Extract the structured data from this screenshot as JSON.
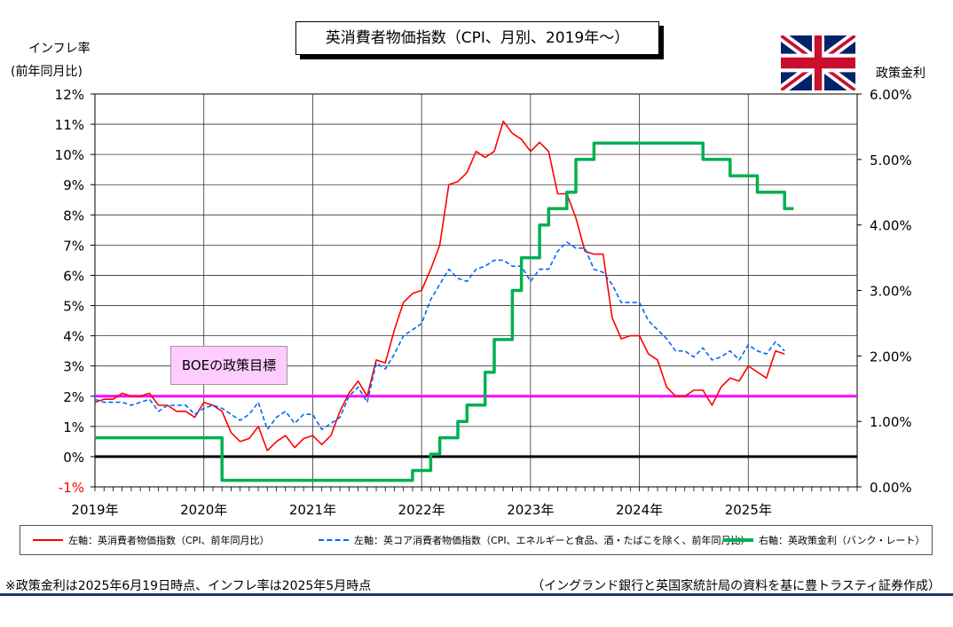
{
  "title": "英消費者物価指数（CPI、月別、2019年～）",
  "left_axis_title_1": "インフレ率",
  "left_axis_title_2": "(前年同月比)",
  "right_axis_title": "政策金利",
  "boe_label": "BOEの政策目標",
  "footnote_left": "※政策金利は2025年6月19日時点、インフレ率は2025年5月時点",
  "footnote_right": "（イングランド銀行と英国家統計局の資料を基に豊トラスティ証券作成）",
  "colors": {
    "cpi": "#ff0000",
    "core": "#0066ff",
    "rate": "#00b050",
    "target": "#ff00ff",
    "zero": "#000000",
    "boe_box": "#ffccff",
    "rule": "#1f3864"
  },
  "icons": {
    "flag": "union-jack-flag-icon"
  },
  "chart_data": {
    "type": "line",
    "x_labels": [
      "2019年",
      "2020年",
      "2021年",
      "2022年",
      "2023年",
      "2024年",
      "2025年"
    ],
    "x_start": "2019-01",
    "x_end": "2025-12",
    "y_left": {
      "ticks": [
        "-1%",
        "0%",
        "1%",
        "2%",
        "3%",
        "4%",
        "5%",
        "6%",
        "7%",
        "8%",
        "9%",
        "10%",
        "11%",
        "12%"
      ],
      "min": -1,
      "max": 12
    },
    "y_right": {
      "ticks": [
        "0.00%",
        "1.00%",
        "2.00%",
        "3.00%",
        "4.00%",
        "5.00%",
        "6.00%"
      ],
      "min": 0,
      "max": 6
    },
    "grid": true,
    "reference_lines": [
      {
        "axis": "left",
        "value": 2,
        "color": "#ff00ff"
      },
      {
        "axis": "left",
        "value": 0,
        "color": "#000000"
      }
    ],
    "series": [
      {
        "name": "左軸：英消費者物価指数（CPI、前年同月比）",
        "axis": "left",
        "color": "#ff0000",
        "dash": "solid",
        "start": "2019-01",
        "values": [
          1.8,
          1.9,
          1.9,
          2.1,
          2.0,
          2.0,
          2.1,
          1.7,
          1.7,
          1.5,
          1.5,
          1.3,
          1.8,
          1.7,
          1.5,
          0.8,
          0.5,
          0.6,
          1.0,
          0.2,
          0.5,
          0.7,
          0.3,
          0.6,
          0.7,
          0.4,
          0.7,
          1.5,
          2.1,
          2.5,
          2.0,
          3.2,
          3.1,
          4.2,
          5.1,
          5.4,
          5.5,
          6.2,
          7.0,
          9.0,
          9.1,
          9.4,
          10.1,
          9.9,
          10.1,
          11.1,
          10.7,
          10.5,
          10.1,
          10.4,
          10.1,
          8.7,
          8.7,
          7.9,
          6.8,
          6.7,
          6.7,
          4.6,
          3.9,
          4.0,
          4.0,
          3.4,
          3.2,
          2.3,
          2.0,
          2.0,
          2.2,
          2.2,
          1.7,
          2.3,
          2.6,
          2.5,
          3.0,
          2.8,
          2.6,
          3.5,
          3.4
        ]
      },
      {
        "name": "左軸：英コア消費者物価指数（CPI、エネルギーと食品、酒・たばこを除く、前年同月比）",
        "axis": "left",
        "color": "#0066ff",
        "dash": "dashed",
        "start": "2019-01",
        "values": [
          1.9,
          1.8,
          1.8,
          1.8,
          1.7,
          1.8,
          1.9,
          1.5,
          1.7,
          1.7,
          1.7,
          1.4,
          1.6,
          1.7,
          1.6,
          1.4,
          1.2,
          1.4,
          1.8,
          0.9,
          1.3,
          1.5,
          1.1,
          1.4,
          1.4,
          0.9,
          1.1,
          1.3,
          2.0,
          2.3,
          1.8,
          3.1,
          2.9,
          3.4,
          4.0,
          4.2,
          4.4,
          5.2,
          5.7,
          6.2,
          5.9,
          5.8,
          6.2,
          6.3,
          6.5,
          6.5,
          6.3,
          6.3,
          5.8,
          6.2,
          6.2,
          6.8,
          7.1,
          6.9,
          6.9,
          6.2,
          6.1,
          5.7,
          5.1,
          5.1,
          5.1,
          4.5,
          4.2,
          3.9,
          3.5,
          3.5,
          3.3,
          3.6,
          3.2,
          3.3,
          3.5,
          3.2,
          3.7,
          3.5,
          3.4,
          3.8,
          3.5
        ]
      },
      {
        "name": "右軸：英政策金利（バンク・レート）",
        "axis": "right",
        "color": "#00b050",
        "dash": "solid",
        "steps": [
          {
            "date": "2019-01",
            "value": 0.75
          },
          {
            "date": "2020-03",
            "value": 0.1
          },
          {
            "date": "2021-12",
            "value": 0.25
          },
          {
            "date": "2022-02",
            "value": 0.5
          },
          {
            "date": "2022-03",
            "value": 0.75
          },
          {
            "date": "2022-05",
            "value": 1.0
          },
          {
            "date": "2022-06",
            "value": 1.25
          },
          {
            "date": "2022-08",
            "value": 1.75
          },
          {
            "date": "2022-09",
            "value": 2.25
          },
          {
            "date": "2022-11",
            "value": 3.0
          },
          {
            "date": "2022-12",
            "value": 3.5
          },
          {
            "date": "2023-02",
            "value": 4.0
          },
          {
            "date": "2023-03",
            "value": 4.25
          },
          {
            "date": "2023-05",
            "value": 4.5
          },
          {
            "date": "2023-06",
            "value": 5.0
          },
          {
            "date": "2023-08",
            "value": 5.25
          },
          {
            "date": "2024-08",
            "value": 5.0
          },
          {
            "date": "2024-11",
            "value": 4.75
          },
          {
            "date": "2025-02",
            "value": 4.5
          },
          {
            "date": "2025-05",
            "value": 4.25
          }
        ],
        "end": "2025-06"
      }
    ],
    "legend_placement": "bottom"
  }
}
